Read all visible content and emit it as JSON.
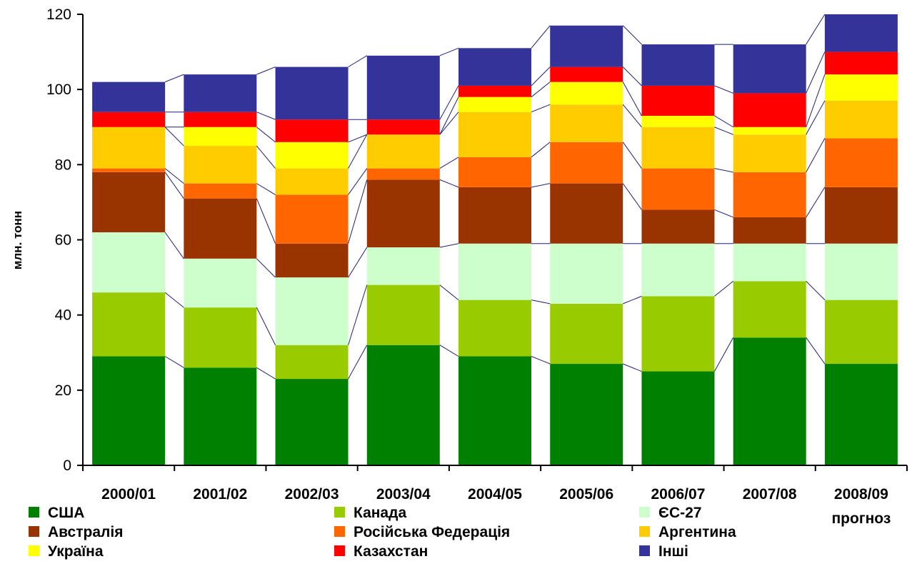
{
  "chart_data": {
    "type": "bar",
    "stacked": true,
    "title": "",
    "xlabel": "",
    "ylabel": "млн. тонн",
    "ylim": [
      0,
      120
    ],
    "yticks": [
      0,
      20,
      40,
      60,
      80,
      100,
      120
    ],
    "grid": false,
    "series_lines": true,
    "legend_position": "bottom",
    "categories": [
      "2000/01",
      "2001/02",
      "2002/03",
      "2003/04",
      "2004/05",
      "2005/06",
      "2006/07",
      "2007/08",
      "2008/09 прогноз"
    ],
    "category_lines": [
      [
        "2000/01"
      ],
      [
        "2001/02"
      ],
      [
        "2002/03"
      ],
      [
        "2003/04"
      ],
      [
        "2004/05"
      ],
      [
        "2005/06"
      ],
      [
        "2006/07"
      ],
      [
        "2007/08"
      ],
      [
        "2008/09",
        "прогноз"
      ]
    ],
    "series": [
      {
        "name": "США",
        "color": "#008000",
        "values": [
          29,
          26,
          23,
          32,
          29,
          27,
          25,
          34,
          27
        ]
      },
      {
        "name": "Канада",
        "color": "#99CC00",
        "values": [
          17,
          16,
          9,
          16,
          15,
          16,
          20,
          15,
          17
        ]
      },
      {
        "name": "ЄС-27",
        "color": "#CCFFCC",
        "values": [
          16,
          13,
          18,
          10,
          15,
          16,
          14,
          10,
          15
        ]
      },
      {
        "name": "Австралія",
        "color": "#993300",
        "values": [
          16,
          16,
          9,
          18,
          15,
          16,
          9,
          7,
          15
        ]
      },
      {
        "name": "Російська Федерація",
        "color": "#FF6600",
        "values": [
          1,
          4,
          13,
          3,
          8,
          11,
          11,
          12,
          13
        ]
      },
      {
        "name": "Аргентина",
        "color": "#FFCC00",
        "values": [
          11,
          10,
          7,
          9,
          12,
          10,
          11,
          10,
          10
        ]
      },
      {
        "name": "Україна",
        "color": "#FFFF00",
        "values": [
          0,
          5,
          7,
          0,
          4,
          6,
          3,
          2,
          7
        ]
      },
      {
        "name": "Казахстан",
        "color": "#FF0000",
        "values": [
          4,
          4,
          6,
          4,
          3,
          4,
          8,
          9,
          6
        ]
      },
      {
        "name": "Інші",
        "color": "#333399",
        "values": [
          8,
          10,
          14,
          17,
          10,
          11,
          11,
          13,
          10
        ]
      }
    ]
  }
}
